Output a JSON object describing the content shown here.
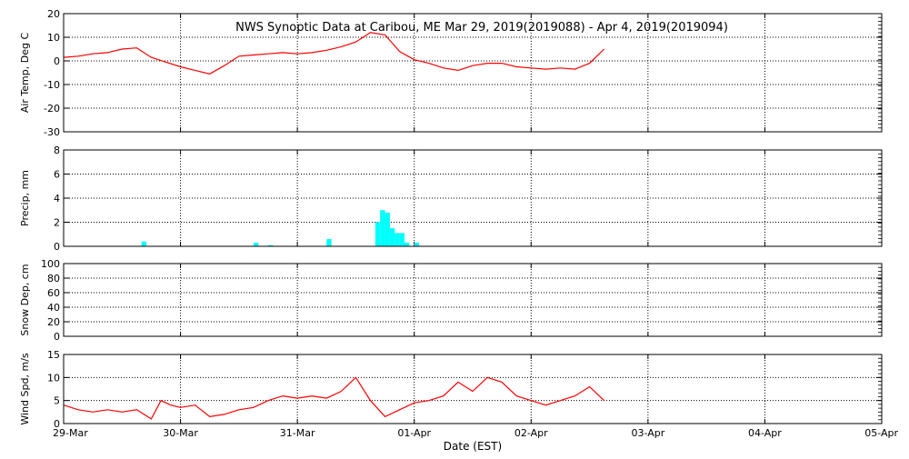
{
  "title": "NWS Synoptic Data at Caribou, ME   Mar 29, 2019(2019088) - Apr  4, 2019(2019094)",
  "x_axis": {
    "label": "Date (EST)",
    "tick_labels": [
      "29-Mar",
      "30-Mar",
      "31-Mar",
      "01-Apr",
      "02-Apr",
      "03-Apr",
      "04-Apr",
      "05-Apr"
    ],
    "range_days": [
      0,
      7
    ]
  },
  "colors": {
    "line": "#ff0000",
    "bar": "#00ffff",
    "axis": "#000000"
  },
  "chart_data": [
    {
      "type": "line",
      "ylabel": "Air Temp, Deg C",
      "ylim": [
        -30,
        20
      ],
      "yticks": [
        "20",
        "10",
        "0",
        "-10",
        "-20",
        "-30"
      ],
      "grid": true,
      "series": [
        {
          "x": [
            "2019-03-29 00:00",
            "2019-03-29 03:00",
            "2019-03-29 06:00",
            "2019-03-29 09:00",
            "2019-03-29 12:00",
            "2019-03-29 15:00",
            "2019-03-29 18:00",
            "2019-03-29 21:00",
            "2019-03-30 00:00",
            "2019-03-30 03:00",
            "2019-03-30 06:00",
            "2019-03-30 09:00",
            "2019-03-30 12:00",
            "2019-03-30 15:00",
            "2019-03-30 18:00",
            "2019-03-30 21:00",
            "2019-03-31 00:00",
            "2019-03-31 03:00",
            "2019-03-31 06:00",
            "2019-03-31 09:00",
            "2019-03-31 12:00",
            "2019-03-31 15:00",
            "2019-03-31 18:00",
            "2019-03-31 21:00",
            "2019-04-01 00:00",
            "2019-04-01 03:00",
            "2019-04-01 06:00",
            "2019-04-01 09:00",
            "2019-04-01 12:00",
            "2019-04-01 15:00",
            "2019-04-01 18:00",
            "2019-04-01 21:00",
            "2019-04-02 00:00",
            "2019-04-02 03:00",
            "2019-04-02 06:00",
            "2019-04-02 09:00",
            "2019-04-02 12:00",
            "2019-04-02 15:00"
          ],
          "y": [
            1.5,
            2,
            3,
            3.5,
            5,
            5.5,
            1.5,
            -0.5,
            -2.5,
            -4,
            -5.5,
            -2,
            2,
            2.5,
            3,
            3.5,
            3,
            3.5,
            4.5,
            6,
            8,
            12,
            11,
            4,
            0.5,
            -1,
            -3,
            -4,
            -2,
            -1,
            -1,
            -2.5,
            -3,
            -3.5,
            -3,
            -3.5,
            -1,
            5
          ]
        }
      ]
    },
    {
      "type": "bar",
      "ylabel": "Precip, mm",
      "ylim": [
        0,
        8
      ],
      "yticks": [
        "8",
        "6",
        "4",
        "2",
        "0"
      ],
      "grid": true,
      "series": [
        {
          "x": [
            "2019-03-29 16:00",
            "2019-03-30 15:00",
            "2019-03-30 18:00",
            "2019-03-31 06:00",
            "2019-03-31 16:00",
            "2019-03-31 17:00",
            "2019-03-31 18:00",
            "2019-03-31 19:00",
            "2019-03-31 20:00",
            "2019-03-31 21:00",
            "2019-03-31 22:00",
            "2019-04-01 00:00"
          ],
          "y": [
            0.4,
            0.3,
            0.1,
            0.6,
            2.0,
            3.0,
            2.8,
            1.5,
            1.1,
            1.1,
            0.3,
            0.3
          ]
        }
      ]
    },
    {
      "type": "line",
      "ylabel": "Snow Dep, cm",
      "ylim": [
        0,
        100
      ],
      "yticks": [
        "100",
        "80",
        "60",
        "40",
        "20",
        "0"
      ],
      "grid": true,
      "series": []
    },
    {
      "type": "line",
      "ylabel": "Wind Spd, m/s",
      "ylim": [
        0,
        15
      ],
      "yticks": [
        "15",
        "10",
        "5",
        "0"
      ],
      "grid": true,
      "series": [
        {
          "x": [
            "2019-03-29 00:00",
            "2019-03-29 03:00",
            "2019-03-29 06:00",
            "2019-03-29 09:00",
            "2019-03-29 12:00",
            "2019-03-29 15:00",
            "2019-03-29 18:00",
            "2019-03-29 20:00",
            "2019-03-29 22:00",
            "2019-03-30 00:00",
            "2019-03-30 03:00",
            "2019-03-30 06:00",
            "2019-03-30 09:00",
            "2019-03-30 12:00",
            "2019-03-30 15:00",
            "2019-03-30 18:00",
            "2019-03-30 21:00",
            "2019-03-31 00:00",
            "2019-03-31 03:00",
            "2019-03-31 06:00",
            "2019-03-31 09:00",
            "2019-03-31 12:00",
            "2019-03-31 15:00",
            "2019-03-31 18:00",
            "2019-03-31 21:00",
            "2019-04-01 00:00",
            "2019-04-01 03:00",
            "2019-04-01 06:00",
            "2019-04-01 09:00",
            "2019-04-01 12:00",
            "2019-04-01 15:00",
            "2019-04-01 18:00",
            "2019-04-01 21:00",
            "2019-04-02 00:00",
            "2019-04-02 03:00",
            "2019-04-02 06:00",
            "2019-04-02 09:00",
            "2019-04-02 12:00",
            "2019-04-02 15:00"
          ],
          "y": [
            4,
            3,
            2.5,
            3,
            2.5,
            3,
            1,
            5,
            4,
            3.5,
            4,
            1.5,
            2,
            3,
            3.5,
            5,
            6,
            5.5,
            6,
            5.5,
            7,
            10,
            5,
            1.5,
            3,
            4.5,
            5,
            6,
            9,
            7,
            10,
            9,
            6,
            5,
            4,
            5,
            6,
            8,
            5
          ]
        }
      ]
    }
  ]
}
